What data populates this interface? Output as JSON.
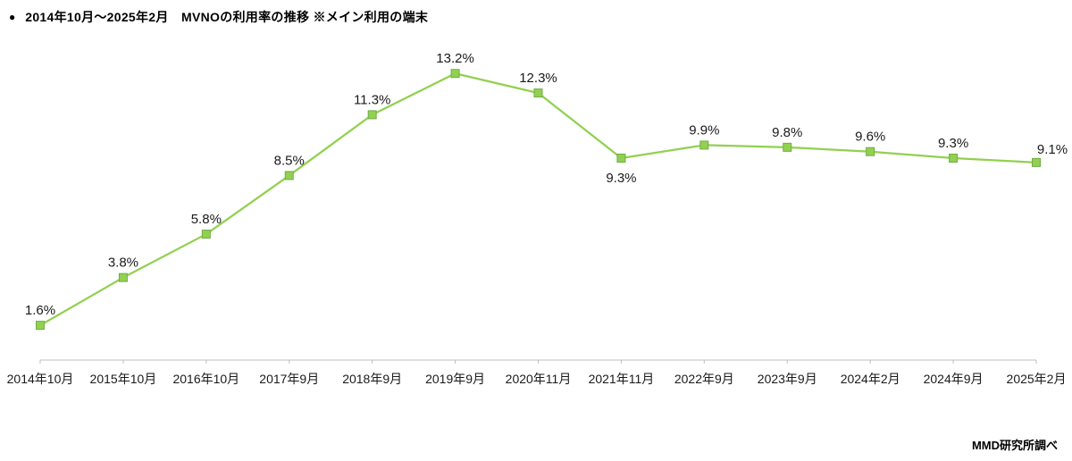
{
  "header": {
    "bullet": "●",
    "title": "2014年10月～2025年2月　MVNOの利用率の推移 ※メイン利用の端末"
  },
  "footer": {
    "source_note": "MMD研究所調べ"
  },
  "chart_data": {
    "type": "line",
    "title": "2014年10月～2025年2月 MVNOの利用率の推移 ※メイン利用の端末",
    "categories": [
      "2014年10月",
      "2015年10月",
      "2016年10月",
      "2017年9月",
      "2018年9月",
      "2019年9月",
      "2020年11月",
      "2021年11月",
      "2022年9月",
      "2023年9月",
      "2024年2月",
      "2024年9月",
      "2025年2月"
    ],
    "values": [
      1.6,
      3.8,
      5.8,
      8.5,
      11.3,
      13.2,
      12.3,
      9.3,
      9.9,
      9.8,
      9.6,
      9.3,
      9.1
    ],
    "data_labels": [
      "1.6%",
      "3.8%",
      "5.8%",
      "8.5%",
      "11.3%",
      "13.2%",
      "12.3%",
      "9.3%",
      "9.9%",
      "9.8%",
      "9.6%",
      "9.3%",
      "9.1%"
    ],
    "label_positions": [
      "above",
      "above",
      "above",
      "above",
      "above",
      "above",
      "above",
      "below",
      "above",
      "above",
      "above",
      "above",
      "above-right"
    ],
    "xlabel": "",
    "ylabel": "",
    "ylim": [
      0,
      16.5
    ],
    "grid": false,
    "legend": "none",
    "line_color": "#92D050",
    "marker": {
      "shape": "square",
      "fill": "#92D050",
      "border": "#70AD47",
      "size": 9
    },
    "axis_color": "#BFBFBF",
    "text_color": "#1a1a1a",
    "source_note": "MMD研究所調べ"
  }
}
